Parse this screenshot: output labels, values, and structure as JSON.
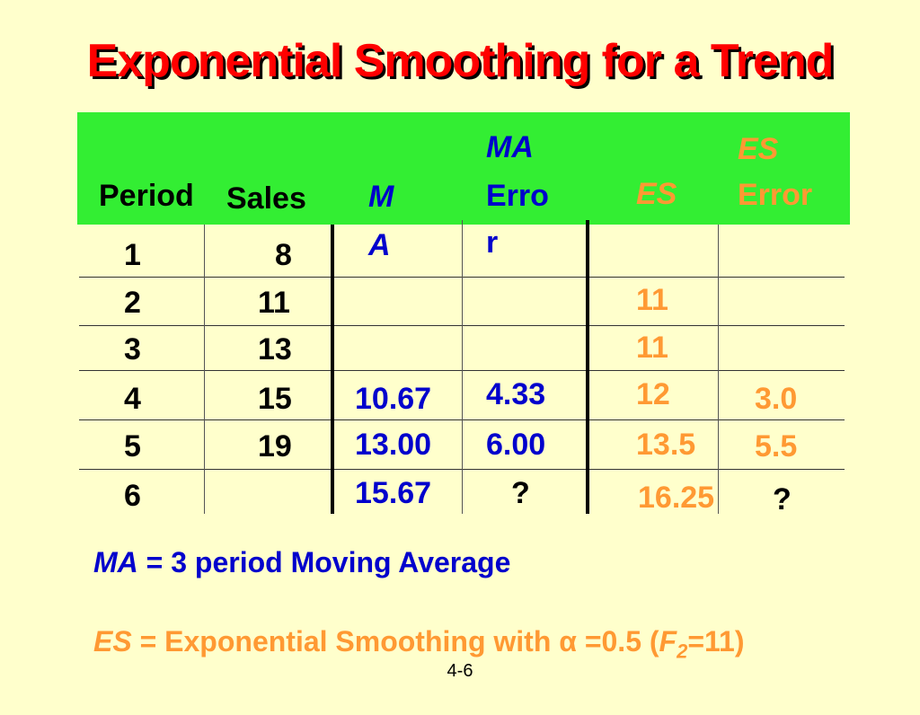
{
  "title": "Exponential Smoothing for a Trend",
  "headers": {
    "period": "Period",
    "sales": "Sales",
    "ma_line1": "M",
    "ma_line2": "A",
    "ma_error_line1": "MA",
    "ma_error_line2": "Erro",
    "ma_error_line3": "r",
    "es": "ES",
    "es_error_line1": "ES",
    "es_error_line2": "Error"
  },
  "rows": [
    {
      "period": "1",
      "sales": "8",
      "ma": "",
      "ma_error": "",
      "es": "",
      "es_error": ""
    },
    {
      "period": "2",
      "sales": "11",
      "ma": "",
      "ma_error": "",
      "es": "11",
      "es_error": ""
    },
    {
      "period": "3",
      "sales": "13",
      "ma": "",
      "ma_error": "",
      "es": "11",
      "es_error": ""
    },
    {
      "period": "4",
      "sales": "15",
      "ma": "10.67",
      "ma_error": "4.33",
      "es": "12",
      "es_error": "3.0"
    },
    {
      "period": "5",
      "sales": "19",
      "ma": "13.00",
      "ma_error": "6.00",
      "es": "13.5",
      "es_error": "5.5"
    },
    {
      "period": "6",
      "sales": "",
      "ma": "15.67",
      "ma_error": "?",
      "es": "16.25",
      "es_error": "?"
    }
  ],
  "legend": {
    "ma_abbr": "MA",
    "ma_text": " = 3 period Moving Average",
    "es_abbr": "ES",
    "es_text": " = Exponential Smoothing with ",
    "alpha": "α",
    "es_text2": " =0.5 (",
    "f_var": "F",
    "f_sub": "2",
    "es_text3": "=11)"
  },
  "page_number": "4-6",
  "colors": {
    "title": "#ff0000",
    "header_band": "#33ee33",
    "ma": "#0000cc",
    "es": "#ff9933"
  }
}
